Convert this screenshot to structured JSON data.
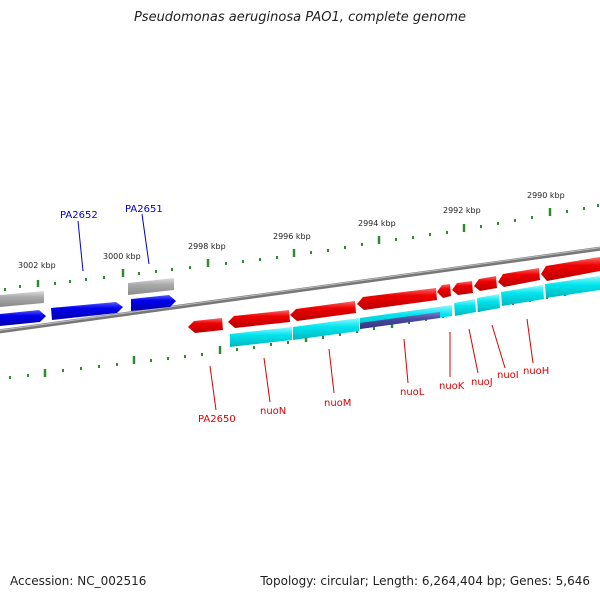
{
  "title": "Pseudomonas aeruginosa PAO1, complete genome",
  "footer": {
    "accession": "Accession: NC_002516",
    "summary": "Topology: circular; Length: 6,264,404 bp; Genes: 5,646"
  },
  "colors": {
    "forward_gene": "#0000ee",
    "reverse_gene": "#ee0000",
    "cds": "#00e5ee",
    "highlight": "#4a4aa0",
    "other": "#a9a9a9",
    "backbone": "#808080",
    "tick": "#2e8b2e"
  },
  "scale_labels": [
    "3002 kbp",
    "3000 kbp",
    "2998 kbp",
    "2996 kbp",
    "2994 kbp",
    "2992 kbp",
    "2990 kbp"
  ],
  "forward_gene_labels": [
    "PA2652",
    "PA2651"
  ],
  "reverse_gene_labels": [
    "PA2650",
    "nuoN",
    "nuoM",
    "nuoL",
    "nuoK",
    "nuoJ",
    "nuoI",
    "nuoH"
  ]
}
